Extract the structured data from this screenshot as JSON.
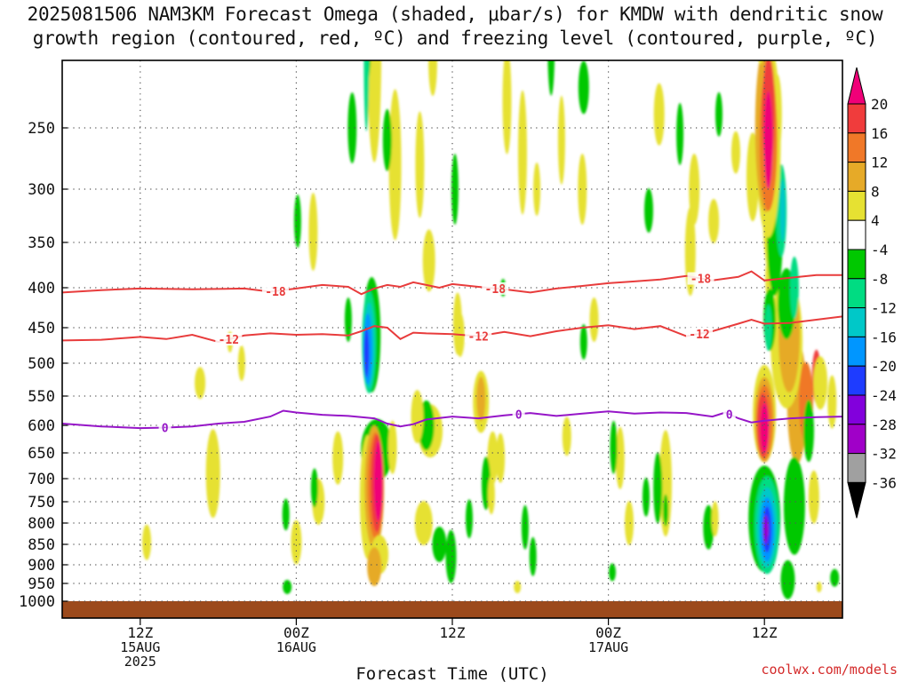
{
  "title_line1": "2025081506 NAM3KM Forecast Omega (shaded, μbar/s) for KMDW with dendritic snow",
  "title_line2": "growth region (contoured, red, ºC) and freezing level (contoured, purple, ºC)",
  "credit": "coolwx.com/models",
  "chart_data": {
    "type": "time-height",
    "xlabel": "Forecast Time (UTC)",
    "x_ticks": [
      {
        "hour": 6,
        "lines": [
          "12Z",
          "15AUG",
          "2025"
        ]
      },
      {
        "hour": 18,
        "lines": [
          "00Z",
          "16AUG"
        ]
      },
      {
        "hour": 30,
        "lines": [
          "12Z"
        ]
      },
      {
        "hour": 42,
        "lines": [
          "00Z",
          "17AUG"
        ]
      },
      {
        "hour": 54,
        "lines": [
          "12Z"
        ]
      }
    ],
    "xlim_hours": [
      0,
      60
    ],
    "y_ticks": [
      "250",
      "300",
      "350",
      "400",
      "450",
      "500",
      "550",
      "600",
      "650",
      "700",
      "750",
      "800",
      "850",
      "900",
      "950",
      "1000"
    ],
    "ylim": [
      200,
      1025
    ],
    "grid": true,
    "ground_color": "#9c4a1c",
    "colorbar": {
      "labels": [
        "20",
        "16",
        "12",
        "8",
        "4",
        "-4",
        "-8",
        "-12",
        "-16",
        "-20",
        "-24",
        "-28",
        "-32",
        "-36"
      ],
      "colors": [
        "#f00078",
        "#f03c3c",
        "#f07828",
        "#e6aa28",
        "#e6e132",
        "#ffffff",
        "#00c800",
        "#00dc82",
        "#00c8c8",
        "#0096ff",
        "#1e3cff",
        "#8200dc",
        "#a000c8",
        "#a0a0a0",
        "#000000"
      ]
    },
    "contours": [
      {
        "label": "-18",
        "color": "#e83c3c",
        "x": [
          0,
          3,
          6,
          10,
          14,
          16,
          18,
          20,
          22,
          23,
          24,
          25,
          26,
          27,
          28,
          29,
          30,
          32,
          34,
          36,
          38,
          40,
          42,
          44,
          46,
          48,
          50,
          52,
          53,
          54,
          56,
          58,
          60
        ],
        "p": [
          406,
          403,
          401,
          402,
          401,
          405,
          401,
          397,
          399,
          408,
          401,
          397,
          399,
          394,
          397,
          400,
          396,
          399,
          402,
          406,
          401,
          398,
          395,
          393,
          391,
          387,
          392,
          388,
          382,
          392,
          389,
          386,
          386
        ],
        "label_hours": [
          16.4,
          33.3,
          49.1
        ]
      },
      {
        "label": "-12",
        "color": "#e83c3c",
        "x": [
          0,
          3,
          6,
          8,
          10,
          12,
          14,
          16,
          18,
          20,
          22,
          23,
          24,
          25,
          26,
          27,
          28,
          30,
          32,
          34,
          36,
          38,
          40,
          42,
          44,
          46,
          48,
          50,
          52,
          53,
          54,
          56,
          58,
          60
        ],
        "p": [
          468,
          467,
          463,
          466,
          460,
          470,
          461,
          458,
          460,
          459,
          461,
          455,
          448,
          450,
          466,
          457,
          458,
          459,
          462,
          456,
          462,
          455,
          450,
          447,
          452,
          448,
          462,
          455,
          445,
          440,
          445,
          444,
          440,
          436
        ],
        "label_hours": [
          12.8,
          32.0,
          49.0
        ]
      },
      {
        "label": "0",
        "color": "#9616c8",
        "x": [
          0,
          3,
          6,
          8,
          10,
          12,
          14,
          16,
          17,
          18,
          20,
          22,
          24,
          25,
          26,
          27,
          28,
          30,
          32,
          34,
          36,
          38,
          40,
          42,
          44,
          46,
          48,
          50,
          51,
          52,
          53,
          54,
          56,
          58,
          60
        ],
        "p": [
          597,
          602,
          605,
          604,
          602,
          597,
          594,
          585,
          575,
          578,
          582,
          584,
          588,
          597,
          602,
          598,
          590,
          585,
          588,
          583,
          579,
          584,
          580,
          576,
          580,
          578,
          579,
          585,
          578,
          588,
          595,
          592,
          588,
          586,
          585
        ],
        "label_hours": [
          7.9,
          35.1,
          51.3
        ]
      }
    ]
  }
}
